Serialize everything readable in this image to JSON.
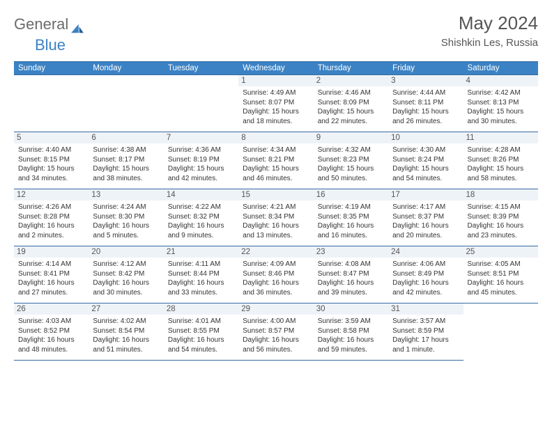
{
  "brand": {
    "part1": "General",
    "part2": "Blue"
  },
  "title": "May 2024",
  "location": "Shishkin Les, Russia",
  "weekdays": [
    "Sunday",
    "Monday",
    "Tuesday",
    "Wednesday",
    "Thursday",
    "Friday",
    "Saturday"
  ],
  "colors": {
    "header_bg": "#3b82c4",
    "header_text": "#ffffff",
    "border": "#3568a0",
    "daynum_bg": "#eef3f8",
    "title_text": "#555555",
    "body_text": "#333333",
    "logo_gray": "#6b6b6b",
    "logo_blue": "#3b82c4",
    "page_bg": "#ffffff"
  },
  "days": [
    {
      "n": 1,
      "sr": "4:49 AM",
      "ss": "8:07 PM",
      "dl": "15 hours and 18 minutes."
    },
    {
      "n": 2,
      "sr": "4:46 AM",
      "ss": "8:09 PM",
      "dl": "15 hours and 22 minutes."
    },
    {
      "n": 3,
      "sr": "4:44 AM",
      "ss": "8:11 PM",
      "dl": "15 hours and 26 minutes."
    },
    {
      "n": 4,
      "sr": "4:42 AM",
      "ss": "8:13 PM",
      "dl": "15 hours and 30 minutes."
    },
    {
      "n": 5,
      "sr": "4:40 AM",
      "ss": "8:15 PM",
      "dl": "15 hours and 34 minutes."
    },
    {
      "n": 6,
      "sr": "4:38 AM",
      "ss": "8:17 PM",
      "dl": "15 hours and 38 minutes."
    },
    {
      "n": 7,
      "sr": "4:36 AM",
      "ss": "8:19 PM",
      "dl": "15 hours and 42 minutes."
    },
    {
      "n": 8,
      "sr": "4:34 AM",
      "ss": "8:21 PM",
      "dl": "15 hours and 46 minutes."
    },
    {
      "n": 9,
      "sr": "4:32 AM",
      "ss": "8:23 PM",
      "dl": "15 hours and 50 minutes."
    },
    {
      "n": 10,
      "sr": "4:30 AM",
      "ss": "8:24 PM",
      "dl": "15 hours and 54 minutes."
    },
    {
      "n": 11,
      "sr": "4:28 AM",
      "ss": "8:26 PM",
      "dl": "15 hours and 58 minutes."
    },
    {
      "n": 12,
      "sr": "4:26 AM",
      "ss": "8:28 PM",
      "dl": "16 hours and 2 minutes."
    },
    {
      "n": 13,
      "sr": "4:24 AM",
      "ss": "8:30 PM",
      "dl": "16 hours and 5 minutes."
    },
    {
      "n": 14,
      "sr": "4:22 AM",
      "ss": "8:32 PM",
      "dl": "16 hours and 9 minutes."
    },
    {
      "n": 15,
      "sr": "4:21 AM",
      "ss": "8:34 PM",
      "dl": "16 hours and 13 minutes."
    },
    {
      "n": 16,
      "sr": "4:19 AM",
      "ss": "8:35 PM",
      "dl": "16 hours and 16 minutes."
    },
    {
      "n": 17,
      "sr": "4:17 AM",
      "ss": "8:37 PM",
      "dl": "16 hours and 20 minutes."
    },
    {
      "n": 18,
      "sr": "4:15 AM",
      "ss": "8:39 PM",
      "dl": "16 hours and 23 minutes."
    },
    {
      "n": 19,
      "sr": "4:14 AM",
      "ss": "8:41 PM",
      "dl": "16 hours and 27 minutes."
    },
    {
      "n": 20,
      "sr": "4:12 AM",
      "ss": "8:42 PM",
      "dl": "16 hours and 30 minutes."
    },
    {
      "n": 21,
      "sr": "4:11 AM",
      "ss": "8:44 PM",
      "dl": "16 hours and 33 minutes."
    },
    {
      "n": 22,
      "sr": "4:09 AM",
      "ss": "8:46 PM",
      "dl": "16 hours and 36 minutes."
    },
    {
      "n": 23,
      "sr": "4:08 AM",
      "ss": "8:47 PM",
      "dl": "16 hours and 39 minutes."
    },
    {
      "n": 24,
      "sr": "4:06 AM",
      "ss": "8:49 PM",
      "dl": "16 hours and 42 minutes."
    },
    {
      "n": 25,
      "sr": "4:05 AM",
      "ss": "8:51 PM",
      "dl": "16 hours and 45 minutes."
    },
    {
      "n": 26,
      "sr": "4:03 AM",
      "ss": "8:52 PM",
      "dl": "16 hours and 48 minutes."
    },
    {
      "n": 27,
      "sr": "4:02 AM",
      "ss": "8:54 PM",
      "dl": "16 hours and 51 minutes."
    },
    {
      "n": 28,
      "sr": "4:01 AM",
      "ss": "8:55 PM",
      "dl": "16 hours and 54 minutes."
    },
    {
      "n": 29,
      "sr": "4:00 AM",
      "ss": "8:57 PM",
      "dl": "16 hours and 56 minutes."
    },
    {
      "n": 30,
      "sr": "3:59 AM",
      "ss": "8:58 PM",
      "dl": "16 hours and 59 minutes."
    },
    {
      "n": 31,
      "sr": "3:57 AM",
      "ss": "8:59 PM",
      "dl": "17 hours and 1 minute."
    }
  ],
  "labels": {
    "sunrise": "Sunrise:",
    "sunset": "Sunset:",
    "daylight": "Daylight:"
  },
  "first_weekday_index": 3
}
